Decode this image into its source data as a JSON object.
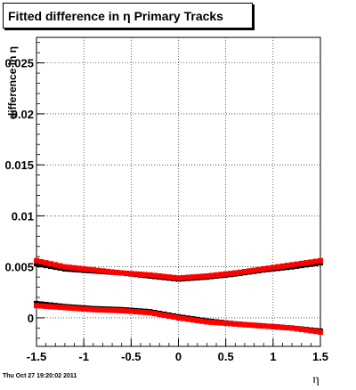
{
  "title": "Fitted difference in  η  Primary Tracks",
  "timestamp": "Thu Oct 27 19:20:02 2011",
  "chart_data": {
    "type": "scatter",
    "title": "Fitted difference in  η  Primary Tracks",
    "xlabel": "η",
    "ylabel": "difference in η",
    "xlim": [
      -1.5,
      1.5
    ],
    "ylim": [
      -0.0028,
      0.0275
    ],
    "x_ticks": [
      "-1.5",
      "-1",
      "-0.5",
      "0",
      "0.5",
      "1",
      "1.5"
    ],
    "y_ticks": [
      "0",
      "0.005",
      "0.01",
      "0.015",
      "0.02",
      "0.025"
    ],
    "grid": true,
    "series": [
      {
        "color": "#000000",
        "x": [
          -1.5,
          -1.2,
          -0.9,
          -0.6,
          -0.3,
          0.0,
          0.3,
          0.6,
          0.9,
          1.2,
          1.5
        ],
        "values": [
          0.0053,
          0.0048,
          0.0046,
          0.0044,
          0.0041,
          0.0038,
          0.004,
          0.0043,
          0.0047,
          0.005,
          0.0054
        ]
      },
      {
        "color": "#ff0000",
        "x": [
          -1.5,
          -1.2,
          -0.9,
          -0.6,
          -0.3,
          0.0,
          0.3,
          0.6,
          0.9,
          1.2,
          1.5
        ],
        "values": [
          0.0056,
          0.005,
          0.0047,
          0.0044,
          0.0042,
          0.0039,
          0.0041,
          0.0044,
          0.0048,
          0.0052,
          0.0056
        ]
      },
      {
        "color": "#000000",
        "x": [
          -1.5,
          -1.2,
          -0.9,
          -0.6,
          -0.3,
          0.0,
          0.3,
          0.6,
          0.9,
          1.2,
          1.5
        ],
        "values": [
          0.0014,
          0.0011,
          0.0009,
          0.0008,
          0.0006,
          0.0001,
          -0.0003,
          -0.0006,
          -0.0008,
          -0.001,
          -0.0013
        ]
      },
      {
        "color": "#ff0000",
        "x": [
          -1.5,
          -1.2,
          -0.9,
          -0.6,
          -0.3,
          0.0,
          0.3,
          0.6,
          0.9,
          1.2,
          1.5
        ],
        "values": [
          0.0012,
          0.001,
          0.0008,
          0.0007,
          0.0005,
          0.0,
          -0.0004,
          -0.0006,
          -0.0008,
          -0.001,
          -0.0014
        ]
      }
    ]
  }
}
